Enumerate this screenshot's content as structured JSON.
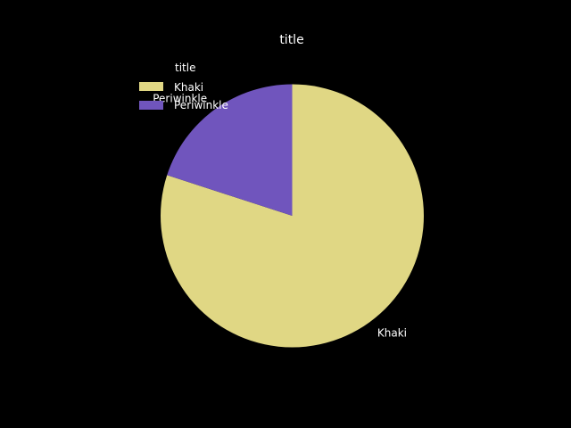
{
  "chart_data": {
    "type": "pie",
    "title": "title",
    "start_angle_deg": 90,
    "direction": "clockwise",
    "slices": [
      {
        "label": "Khaki",
        "value": 80,
        "color": "#e0d784"
      },
      {
        "label": "Periwinkle",
        "value": 20,
        "color": "#7055bd"
      }
    ],
    "legend": {
      "title": "title",
      "position": "top-left",
      "entries": [
        "Khaki",
        "Periwinkle"
      ]
    }
  },
  "colors": {
    "background": "#000000",
    "text": "#ffffff"
  }
}
